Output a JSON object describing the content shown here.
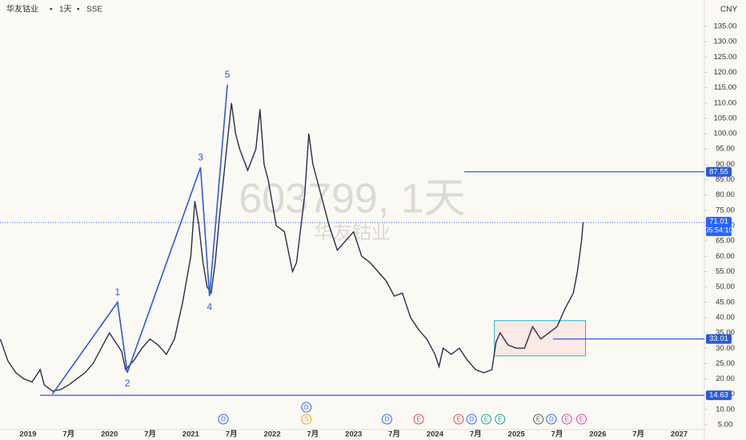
{
  "chart_data": {
    "type": "line",
    "symbol": "华友钴业",
    "interval": "1天",
    "exchange": "SSE",
    "currency": "CNY",
    "watermark": "603799, 1天",
    "watermark_name": "华友钴业",
    "xlim": [
      2018.656,
      2027.31
    ],
    "xticks": [
      2019,
      {
        "value": 2019.5,
        "label": "7月"
      },
      2020,
      {
        "value": 2020.5,
        "label": "7月"
      },
      2021,
      {
        "value": 2021.5,
        "label": "7月"
      },
      2022,
      {
        "value": 2022.5,
        "label": "7月"
      },
      2023,
      {
        "value": 2023.5,
        "label": "7月"
      },
      2024,
      {
        "value": 2024.5,
        "label": "7月"
      },
      2025,
      {
        "value": 2025.5,
        "label": "7月"
      },
      2026,
      {
        "value": 2026.5,
        "label": "7月"
      },
      2027
    ],
    "ylim": [
      3.44,
      143.61
    ],
    "yticks": [
      {
        "value": 5,
        "label": "5.00"
      },
      {
        "value": 10,
        "label": "10.00"
      },
      {
        "value": 15,
        "label": "15.00"
      },
      {
        "value": 20,
        "label": "20.00"
      },
      {
        "value": 25,
        "label": "25.00"
      },
      {
        "value": 30,
        "label": "30.00"
      },
      {
        "value": 35,
        "label": "35.00"
      },
      {
        "value": 40,
        "label": "40.00"
      },
      {
        "value": 45,
        "label": "45.00"
      },
      {
        "value": 50,
        "label": "50.00"
      },
      {
        "value": 55,
        "label": "55.00"
      },
      {
        "value": 60,
        "label": "60.00"
      },
      {
        "value": 65,
        "label": "65.00"
      },
      {
        "value": 70,
        "label": "70.00"
      },
      {
        "value": 75,
        "label": "75.00"
      },
      {
        "value": 80,
        "label": "80.00"
      },
      {
        "value": 85,
        "label": "85.00"
      },
      {
        "value": 90,
        "label": "90.00"
      },
      {
        "value": 95,
        "label": "95.00"
      },
      {
        "value": 100,
        "label": "100.00"
      },
      {
        "value": 105,
        "label": "105.00"
      },
      {
        "value": 110,
        "label": "110.00"
      },
      {
        "value": 115,
        "label": "115.00"
      },
      {
        "value": 120,
        "label": "120.00"
      },
      {
        "value": 125,
        "label": "125.00"
      },
      {
        "value": 130,
        "label": "130.00"
      },
      {
        "value": 135,
        "label": "135.00"
      }
    ],
    "series": [
      {
        "color": "#2b2b4a",
        "x": [
          2018.66,
          2018.75,
          2018.85,
          2018.95,
          2019.05,
          2019.15,
          2019.2,
          2019.3,
          2019.4,
          2019.5,
          2019.6,
          2019.7,
          2019.8,
          2019.9,
          2020.0,
          2020.05,
          2020.15,
          2020.2,
          2020.3,
          2020.4,
          2020.5,
          2020.6,
          2020.7,
          2020.8,
          2020.9,
          2021.0,
          2021.05,
          2021.1,
          2021.15,
          2021.2,
          2021.25,
          2021.3,
          2021.35,
          2021.42,
          2021.5,
          2021.55,
          2021.6,
          2021.7,
          2021.8,
          2021.85,
          2021.9,
          2021.95,
          2022.05,
          2022.15,
          2022.25,
          2022.3,
          2022.4,
          2022.45,
          2022.5,
          2022.6,
          2022.7,
          2022.8,
          2022.9,
          2023.0,
          2023.1,
          2023.2,
          2023.3,
          2023.4,
          2023.5,
          2023.6,
          2023.7,
          2023.8,
          2023.9,
          2024.0,
          2024.05,
          2024.1,
          2024.2,
          2024.3,
          2024.4,
          2024.5,
          2024.6,
          2024.7,
          2024.75,
          2024.8,
          2024.9,
          2025.0,
          2025.1,
          2025.2,
          2025.3,
          2025.4,
          2025.5,
          2025.6,
          2025.7,
          2025.75,
          2025.8,
          2025.82
        ],
        "values": [
          33,
          26,
          22,
          20,
          19,
          23,
          18,
          16,
          16.5,
          18,
          20,
          22,
          25,
          30,
          35,
          33,
          29,
          23,
          26,
          30,
          33,
          31,
          28,
          33,
          45,
          60,
          78,
          70,
          58,
          50,
          48,
          58,
          72,
          90,
          110,
          100,
          95,
          88,
          95,
          108,
          90,
          85,
          70,
          68,
          55,
          58,
          80,
          100,
          90,
          80,
          70,
          62,
          65,
          68,
          60,
          58,
          55,
          52,
          47,
          48,
          40,
          36,
          33,
          28,
          24,
          30,
          28,
          30,
          26,
          23,
          22,
          23,
          32,
          35,
          31,
          30,
          30,
          37,
          33,
          35,
          37,
          43,
          48,
          55,
          65,
          71.01
        ]
      }
    ],
    "wave": {
      "color": "#2a5bd7",
      "x": [
        2019.3,
        2020.1,
        2020.22,
        2021.12,
        2021.23,
        2021.45
      ],
      "values": [
        15,
        45,
        22,
        89,
        47,
        116
      ],
      "labels": [
        "1",
        "2",
        "3",
        "4",
        "5"
      ]
    },
    "levels": [
      {
        "value": 87.55,
        "from": 2024.36
      },
      {
        "value": 33.01,
        "from": 2025.45
      },
      {
        "value": 14.63,
        "from": 2019.15
      }
    ],
    "last_price": 71.01,
    "countdown": "05:54:10",
    "box": {
      "x": [
        2024.73,
        2025.85
      ],
      "y": [
        27.5,
        39
      ]
    },
    "events": [
      {
        "label": "D",
        "x": 2021.4,
        "color": "#2962ff"
      },
      {
        "label": "D",
        "x": 2022.42,
        "color": "#2962ff"
      },
      {
        "label": "S",
        "x": 2022.42,
        "color": "#e8a20c"
      },
      {
        "label": "D",
        "x": 2023.41,
        "color": "#2962ff"
      },
      {
        "label": "E",
        "x": 2023.8,
        "color": "#e04848"
      },
      {
        "label": "E",
        "x": 2024.29,
        "color": "#e04848"
      },
      {
        "label": "D",
        "x": 2024.45,
        "color": "#2962ff"
      },
      {
        "label": "E",
        "x": 2024.63,
        "color": "#16a085"
      },
      {
        "label": "E",
        "x": 2024.8,
        "color": "#16a085"
      },
      {
        "label": "E",
        "x": 2025.27,
        "color": "#555555"
      },
      {
        "label": "D",
        "x": 2025.43,
        "color": "#2962ff"
      },
      {
        "label": "E",
        "x": 2025.62,
        "color": "#d6409f"
      },
      {
        "label": "E",
        "x": 2025.8,
        "color": "#d6409f"
      }
    ]
  }
}
